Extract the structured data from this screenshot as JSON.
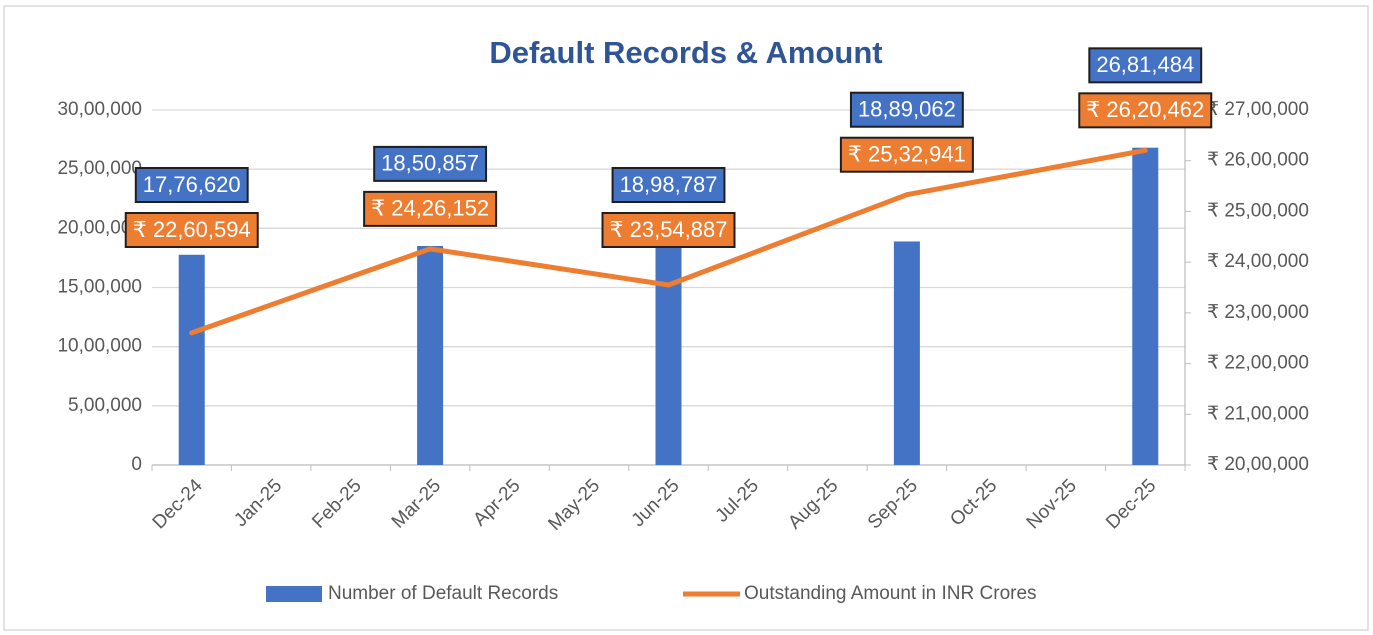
{
  "chart_data": {
    "type": "bar-line",
    "title": "Default Records & Amount",
    "categories": [
      "Dec-24",
      "Jan-25",
      "Feb-25",
      "Mar-25",
      "Apr-25",
      "May-25",
      "Jun-25",
      "Jul-25",
      "Aug-25",
      "Sep-25",
      "Oct-25",
      "Nov-25",
      "Dec-25"
    ],
    "series": [
      {
        "name": "Number of Default Records",
        "type": "bar",
        "color": "#4472c4",
        "values": [
          1776620,
          null,
          null,
          1850857,
          null,
          null,
          1898787,
          null,
          null,
          1889062,
          null,
          null,
          2681484
        ],
        "value_labels": [
          "17,76,620",
          null,
          null,
          "18,50,857",
          null,
          null,
          "18,98,787",
          null,
          null,
          "18,89,062",
          null,
          null,
          "26,81,484"
        ]
      },
      {
        "name": "Outstanding Amount in INR Crores",
        "type": "line",
        "axis": "y2",
        "color": "#ed7d31",
        "values": [
          2260594,
          null,
          null,
          2426152,
          null,
          null,
          2354887,
          null,
          null,
          2532941,
          null,
          null,
          2620462
        ],
        "value_labels": [
          "₹ 22,60,594",
          null,
          null,
          "₹ 24,26,152",
          null,
          null,
          "₹ 23,54,887",
          null,
          null,
          "₹ 25,32,941",
          null,
          null,
          "₹ 26,20,462"
        ]
      }
    ],
    "ylim": [
      0,
      3000000
    ],
    "yticks": [
      0,
      {
        "value": 500000,
        "label": "5,00,000"
      },
      {
        "value": 1000000,
        "label": "10,00,000"
      },
      {
        "value": 1500000,
        "label": "15,00,000"
      },
      {
        "value": 2000000,
        "label": "20,00,000"
      },
      {
        "value": 2500000,
        "label": "25,00,000"
      },
      {
        "value": 3000000,
        "label": "30,00,000"
      }
    ],
    "y2lim": [
      2000000,
      2700000
    ],
    "y2ticks": [
      {
        "value": 2000000,
        "label": "₹ 20,00,000"
      },
      {
        "value": 2100000,
        "label": "₹ 21,00,000"
      },
      {
        "value": 2200000,
        "label": "₹ 22,00,000"
      },
      {
        "value": 2300000,
        "label": "₹ 23,00,000"
      },
      {
        "value": 2400000,
        "label": "₹ 24,00,000"
      },
      {
        "value": 2500000,
        "label": "₹ 25,00,000"
      },
      {
        "value": 2600000,
        "label": "₹ 26,00,000"
      },
      {
        "value": 2700000,
        "label": "₹ 27,00,000"
      }
    ],
    "grid": true,
    "legend": "bottom"
  }
}
